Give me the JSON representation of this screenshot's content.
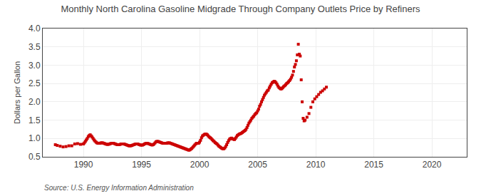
{
  "chart_data": {
    "type": "scatter",
    "title": "Monthly North Carolina Gasoline Midgrade Through Company Outlets Price by Refiners",
    "ylabel": "Dollars per Gallon",
    "annotations": [
      "Source: U.S. Energy Information Administration"
    ],
    "color": "#cc0000",
    "marker": "square",
    "grid": true,
    "xlim": [
      1986.5,
      2023.0
    ],
    "ylim": [
      0.5,
      4.0
    ],
    "xticks": [
      1990,
      1995,
      2000,
      2005,
      2010,
      2015,
      2020
    ],
    "yticks": [
      0.5,
      {
        "value": 1.0,
        "label": "1.0"
      },
      1.5,
      {
        "value": 2.0,
        "label": "2.0"
      },
      2.5,
      {
        "value": 3.0,
        "label": "3.0"
      },
      3.5,
      {
        "value": 4.0,
        "label": "4.0"
      }
    ],
    "x": [
      1987.583,
      1987.75,
      1988.0,
      1988.25,
      1988.5,
      1988.75,
      1989.0,
      1989.25,
      1989.5,
      1989.75,
      1990.0,
      1990.083,
      1990.167,
      1990.25,
      1990.333,
      1990.417,
      1990.5,
      1990.583,
      1990.667,
      1990.75,
      1990.833,
      1990.917,
      1991.0,
      1991.083,
      1991.167,
      1991.25,
      1991.333,
      1991.417,
      1991.5,
      1991.583,
      1991.667,
      1991.75,
      1991.833,
      1991.917,
      1992.0,
      1992.083,
      1992.167,
      1992.25,
      1992.333,
      1992.417,
      1992.5,
      1992.583,
      1992.667,
      1992.75,
      1992.833,
      1992.917,
      1993.0,
      1993.083,
      1993.167,
      1993.25,
      1993.333,
      1993.417,
      1993.5,
      1993.583,
      1993.667,
      1993.75,
      1993.833,
      1993.917,
      1994.0,
      1994.083,
      1994.167,
      1994.25,
      1994.333,
      1994.417,
      1994.5,
      1994.583,
      1994.667,
      1994.75,
      1994.833,
      1994.917,
      1995.0,
      1995.083,
      1995.167,
      1995.25,
      1995.333,
      1995.417,
      1995.5,
      1995.583,
      1995.667,
      1995.75,
      1995.833,
      1995.917,
      1996.0,
      1996.083,
      1996.167,
      1996.25,
      1996.333,
      1996.417,
      1996.5,
      1996.583,
      1996.667,
      1996.75,
      1996.833,
      1996.917,
      1997.0,
      1997.083,
      1997.167,
      1997.25,
      1997.333,
      1997.417,
      1997.5,
      1997.583,
      1997.667,
      1997.75,
      1997.833,
      1997.917,
      1998.0,
      1998.083,
      1998.167,
      1998.25,
      1998.333,
      1998.417,
      1998.5,
      1998.583,
      1998.667,
      1998.75,
      1998.833,
      1998.917,
      1999.0,
      1999.083,
      1999.167,
      1999.25,
      1999.333,
      1999.417,
      1999.5,
      1999.583,
      1999.667,
      1999.75,
      1999.833,
      1999.917,
      2000.0,
      2000.083,
      2000.167,
      2000.25,
      2000.333,
      2000.417,
      2000.5,
      2000.583,
      2000.667,
      2000.75,
      2000.833,
      2000.917,
      2001.0,
      2001.083,
      2001.167,
      2001.25,
      2001.333,
      2001.417,
      2001.5,
      2001.583,
      2001.667,
      2001.75,
      2001.833,
      2001.917,
      2002.0,
      2002.083,
      2002.167,
      2002.25,
      2002.333,
      2002.417,
      2002.5,
      2002.583,
      2002.667,
      2002.75,
      2002.833,
      2002.917,
      2003.0,
      2003.083,
      2003.167,
      2003.25,
      2003.333,
      2003.417,
      2003.5,
      2003.583,
      2003.667,
      2003.75,
      2003.833,
      2003.917,
      2004.0,
      2004.083,
      2004.167,
      2004.25,
      2004.333,
      2004.417,
      2004.5,
      2004.583,
      2004.667,
      2004.75,
      2004.833,
      2004.917,
      2005.0,
      2005.083,
      2005.167,
      2005.25,
      2005.333,
      2005.417,
      2005.5,
      2005.583,
      2005.667,
      2005.75,
      2005.833,
      2005.917,
      2006.0,
      2006.083,
      2006.167,
      2006.25,
      2006.333,
      2006.417,
      2006.5,
      2006.583,
      2006.667,
      2006.75,
      2006.833,
      2006.917,
      2007.0,
      2007.083,
      2007.167,
      2007.25,
      2007.333,
      2007.417,
      2007.5,
      2007.583,
      2007.667,
      2007.75,
      2007.833,
      2007.917,
      2008.0,
      2008.083,
      2008.167,
      2008.25,
      2008.333,
      2008.417,
      2008.5,
      2008.583,
      2008.667,
      2008.75,
      2008.833,
      2008.917,
      2009.0,
      2009.083,
      2009.25,
      2009.417,
      2009.583,
      2009.75,
      2009.917,
      2010.083,
      2010.25,
      2010.417,
      2010.583,
      2010.75,
      2010.917
    ],
    "values": [
      0.83,
      0.81,
      0.79,
      0.77,
      0.78,
      0.8,
      0.8,
      0.85,
      0.86,
      0.84,
      0.85,
      0.88,
      0.92,
      0.96,
      1.0,
      1.05,
      1.08,
      1.1,
      1.07,
      1.04,
      1.0,
      0.96,
      0.93,
      0.9,
      0.88,
      0.87,
      0.87,
      0.87,
      0.88,
      0.88,
      0.88,
      0.87,
      0.86,
      0.85,
      0.84,
      0.84,
      0.84,
      0.85,
      0.86,
      0.87,
      0.87,
      0.87,
      0.86,
      0.85,
      0.84,
      0.83,
      0.83,
      0.83,
      0.84,
      0.85,
      0.85,
      0.85,
      0.85,
      0.84,
      0.83,
      0.82,
      0.81,
      0.8,
      0.8,
      0.8,
      0.81,
      0.82,
      0.83,
      0.84,
      0.85,
      0.85,
      0.85,
      0.84,
      0.83,
      0.82,
      0.82,
      0.82,
      0.83,
      0.85,
      0.86,
      0.87,
      0.87,
      0.86,
      0.85,
      0.84,
      0.83,
      0.82,
      0.83,
      0.85,
      0.88,
      0.91,
      0.92,
      0.92,
      0.91,
      0.9,
      0.89,
      0.88,
      0.87,
      0.87,
      0.87,
      0.87,
      0.87,
      0.88,
      0.88,
      0.88,
      0.87,
      0.86,
      0.85,
      0.84,
      0.83,
      0.82,
      0.81,
      0.8,
      0.79,
      0.78,
      0.77,
      0.76,
      0.75,
      0.74,
      0.73,
      0.72,
      0.71,
      0.7,
      0.69,
      0.68,
      0.69,
      0.71,
      0.73,
      0.76,
      0.79,
      0.82,
      0.85,
      0.87,
      0.87,
      0.87,
      0.9,
      0.95,
      1.02,
      1.07,
      1.09,
      1.11,
      1.12,
      1.12,
      1.1,
      1.07,
      1.04,
      1.02,
      1.0,
      0.97,
      0.94,
      0.92,
      0.89,
      0.87,
      0.85,
      0.82,
      0.79,
      0.77,
      0.75,
      0.73,
      0.72,
      0.72,
      0.74,
      0.78,
      0.83,
      0.89,
      0.94,
      0.98,
      1.0,
      1.01,
      0.99,
      0.98,
      0.97,
      1.0,
      1.04,
      1.08,
      1.1,
      1.12,
      1.13,
      1.14,
      1.16,
      1.18,
      1.2,
      1.22,
      1.25,
      1.3,
      1.36,
      1.42,
      1.46,
      1.5,
      1.55,
      1.58,
      1.61,
      1.65,
      1.68,
      1.7,
      1.75,
      1.8,
      1.88,
      1.93,
      2.0,
      2.06,
      2.12,
      2.18,
      2.22,
      2.26,
      2.3,
      2.32,
      2.38,
      2.43,
      2.48,
      2.52,
      2.54,
      2.56,
      2.55,
      2.52,
      2.48,
      2.43,
      2.39,
      2.37,
      2.35,
      2.36,
      2.39,
      2.42,
      2.44,
      2.47,
      2.5,
      2.52,
      2.55,
      2.58,
      2.62,
      2.67,
      2.73,
      2.83,
      2.95,
      3.02,
      3.12,
      3.28,
      3.57,
      3.3,
      3.25,
      2.6,
      2.0,
      1.55,
      1.48,
      1.5,
      1.58,
      1.68,
      1.85,
      2.0,
      2.08,
      2.14,
      2.2,
      2.26,
      2.3,
      2.35,
      2.4
    ]
  }
}
